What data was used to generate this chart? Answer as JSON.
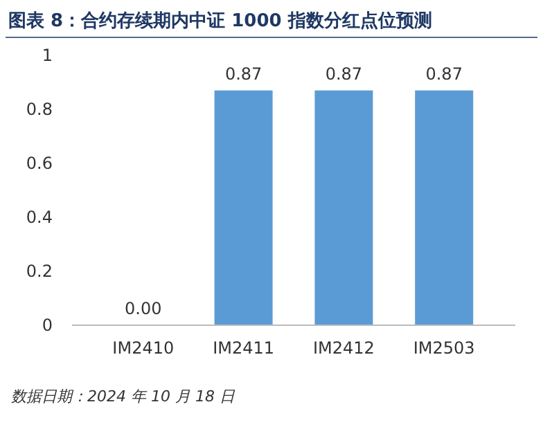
{
  "chart_data": {
    "type": "bar",
    "title": "图表 8：合约存续期内中证 1000 指数分红点位预测",
    "categories": [
      "IM2410",
      "IM2411",
      "IM2412",
      "IM2503"
    ],
    "values": [
      0.0,
      0.87,
      0.87,
      0.87
    ],
    "value_labels": [
      "0.00",
      "0.87",
      "0.87",
      "0.87"
    ],
    "color": "#5b9bd5",
    "ylim": [
      0,
      1
    ],
    "yticks": [
      0,
      0.2,
      0.4,
      0.6,
      0.8,
      1
    ],
    "grid": false,
    "annotations": [
      "数据日期：2024 年 10 月 18 日"
    ]
  }
}
